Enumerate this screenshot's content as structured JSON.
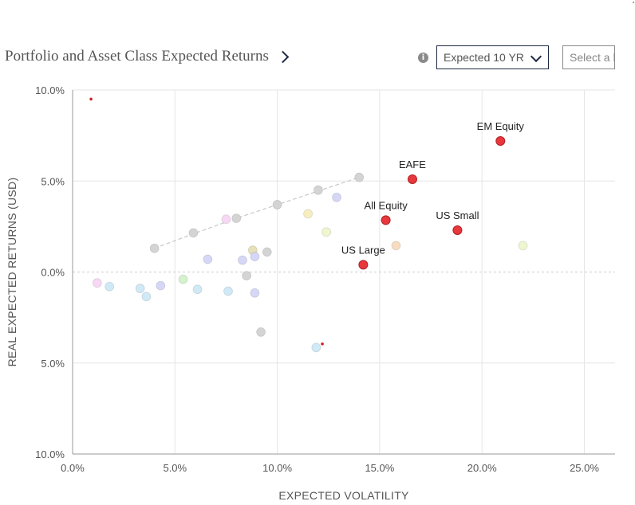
{
  "header": {
    "title": "Portfolio and Asset Class Expected Returns",
    "info_icon": "info-icon",
    "horizon_select": "Expected 10 YR",
    "compare_select": "Select a l"
  },
  "colors": {
    "highlight": "#e8383d",
    "highlight_stroke": "#b02024",
    "grid": "#e6e6e6",
    "trendline": "#c8c8c8"
  },
  "chart_data": {
    "type": "scatter",
    "xlabel": "EXPECTED VOLATILITY",
    "ylabel": "REAL EXPECTED RETURNS (USD)",
    "xlim": [
      0,
      26.5
    ],
    "ylim": [
      -10,
      10
    ],
    "x_ticks": [
      0,
      5,
      10,
      15,
      20,
      25
    ],
    "x_tick_labels": [
      "0.0%",
      "5.0%",
      "10.0%",
      "15.0%",
      "20.0%",
      "25.0%"
    ],
    "y_ticks": [
      10,
      5,
      0,
      -5,
      -10
    ],
    "y_tick_labels": [
      "10.0%",
      "5.0%",
      "0.0%",
      "5.0%",
      "10.0%"
    ],
    "grid": true,
    "highlighted": [
      {
        "label": "EM Equity",
        "x": 20.9,
        "y": 7.2
      },
      {
        "label": "EAFE",
        "x": 16.6,
        "y": 5.1
      },
      {
        "label": "All Equity",
        "x": 15.3,
        "y": 2.85
      },
      {
        "label": "US Small",
        "x": 18.8,
        "y": 2.3
      },
      {
        "label": "US Large",
        "x": 14.2,
        "y": 0.4
      }
    ],
    "small_markers": [
      {
        "x": 0.9,
        "y": 9.5
      },
      {
        "x": 12.2,
        "y": -3.95
      }
    ],
    "trendline": [
      {
        "x": 4.0,
        "y": 1.3
      },
      {
        "x": 5.9,
        "y": 2.1
      },
      {
        "x": 8.0,
        "y": 2.95
      },
      {
        "x": 10.0,
        "y": 3.7
      },
      {
        "x": 12.0,
        "y": 4.45
      },
      {
        "x": 14.0,
        "y": 5.2
      }
    ],
    "background_points": [
      {
        "x": 4.0,
        "y": 1.3,
        "color": "#d4d4d4"
      },
      {
        "x": 5.9,
        "y": 2.15,
        "color": "#d4d4d4"
      },
      {
        "x": 8.0,
        "y": 2.95,
        "color": "#d4d4d4"
      },
      {
        "x": 10.0,
        "y": 3.7,
        "color": "#d4d4d4"
      },
      {
        "x": 12.0,
        "y": 4.5,
        "color": "#d4d4d4"
      },
      {
        "x": 14.0,
        "y": 5.2,
        "color": "#d4d4d4"
      },
      {
        "x": 7.5,
        "y": 2.9,
        "color": "#f7d8f4"
      },
      {
        "x": 11.5,
        "y": 3.2,
        "color": "#f7eec0"
      },
      {
        "x": 12.4,
        "y": 2.2,
        "color": "#f0f6cc"
      },
      {
        "x": 12.9,
        "y": 4.1,
        "color": "#d6d6f7"
      },
      {
        "x": 15.8,
        "y": 1.45,
        "color": "#f7dcc0"
      },
      {
        "x": 22.0,
        "y": 1.45,
        "color": "#eef6d0"
      },
      {
        "x": 8.8,
        "y": 1.2,
        "color": "#e8e0b8"
      },
      {
        "x": 9.5,
        "y": 1.1,
        "color": "#d4d4d4"
      },
      {
        "x": 6.6,
        "y": 0.7,
        "color": "#d6d6f7"
      },
      {
        "x": 8.3,
        "y": 0.65,
        "color": "#d6d6f7"
      },
      {
        "x": 8.9,
        "y": 0.85,
        "color": "#d6d6f7"
      },
      {
        "x": 8.5,
        "y": -0.2,
        "color": "#d4d4d4"
      },
      {
        "x": 1.2,
        "y": -0.6,
        "color": "#f7d8f4"
      },
      {
        "x": 1.8,
        "y": -0.8,
        "color": "#cfe9f7"
      },
      {
        "x": 3.3,
        "y": -0.9,
        "color": "#cfe9f7"
      },
      {
        "x": 3.6,
        "y": -1.35,
        "color": "#cfe9f7"
      },
      {
        "x": 4.3,
        "y": -0.75,
        "color": "#d6d6f7"
      },
      {
        "x": 5.4,
        "y": -0.4,
        "color": "#d4f2cc"
      },
      {
        "x": 6.1,
        "y": -0.95,
        "color": "#cfe9f7"
      },
      {
        "x": 7.6,
        "y": -1.05,
        "color": "#cfe9f7"
      },
      {
        "x": 8.9,
        "y": -1.15,
        "color": "#d6d6f7"
      },
      {
        "x": 9.2,
        "y": -3.3,
        "color": "#d4d4d4"
      },
      {
        "x": 11.9,
        "y": -4.15,
        "color": "#cfe9f7"
      }
    ]
  }
}
